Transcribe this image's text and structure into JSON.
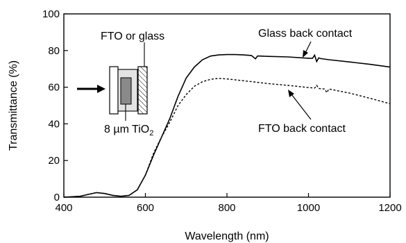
{
  "chart_data": {
    "type": "line",
    "xlabel": "Wavelength (nm)",
    "ylabel": "Transmittance (%)",
    "xlim": [
      400,
      1200
    ],
    "ylim": [
      0,
      100
    ],
    "xticks": [
      400,
      600,
      800,
      1000,
      1200
    ],
    "yticks": [
      0,
      20,
      40,
      60,
      80,
      100
    ],
    "grid": false,
    "series": [
      {
        "name": "Glass back contact",
        "style": "solid",
        "x": [
          400,
          440,
          460,
          480,
          500,
          520,
          540,
          560,
          580,
          600,
          620,
          640,
          660,
          680,
          700,
          720,
          740,
          760,
          780,
          800,
          820,
          840,
          860,
          870,
          875,
          880,
          900,
          950,
          1000,
          1010,
          1015,
          1020,
          1025,
          1030,
          1050,
          1100,
          1150,
          1200
        ],
        "y": [
          0,
          0.5,
          1.5,
          2.5,
          2.0,
          1.0,
          0.5,
          1.0,
          4.0,
          12.0,
          23.0,
          33.0,
          43.0,
          55.0,
          65.0,
          71.0,
          75.0,
          77.0,
          77.6,
          77.8,
          77.8,
          77.6,
          77.3,
          75.5,
          77.0,
          77.0,
          76.8,
          76.5,
          75.8,
          75.8,
          77.5,
          74.0,
          76.0,
          75.6,
          75.0,
          73.8,
          72.5,
          71.0
        ]
      },
      {
        "name": "FTO back contact",
        "style": "dashed",
        "x": [
          400,
          440,
          460,
          480,
          500,
          520,
          540,
          560,
          580,
          600,
          620,
          640,
          660,
          680,
          700,
          720,
          740,
          760,
          780,
          800,
          850,
          900,
          950,
          1000,
          1015,
          1020,
          1025,
          1040,
          1045,
          1050,
          1100,
          1150,
          1200
        ],
        "y": [
          0,
          0.5,
          1.5,
          2.5,
          2.0,
          1.0,
          0.5,
          1.0,
          4.0,
          12.0,
          24.0,
          33.0,
          41.0,
          50.0,
          56.0,
          60.5,
          63.0,
          64.3,
          64.8,
          64.5,
          63.3,
          62.0,
          61.0,
          59.8,
          59.5,
          61.0,
          59.3,
          59.0,
          57.0,
          59.0,
          56.8,
          54.0,
          51.0
        ]
      }
    ],
    "annotations": {
      "glass_label": "Glass back contact",
      "fto_label": "FTO back contact"
    }
  },
  "inset": {
    "label_top": "FTO or glass",
    "label_bottom_main": "8 µm TiO",
    "label_bottom_sub": "2"
  }
}
